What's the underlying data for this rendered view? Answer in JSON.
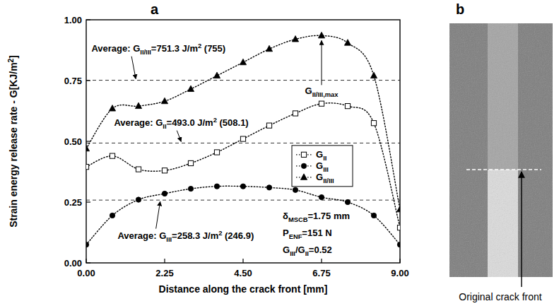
{
  "chart_data": {
    "type": "line",
    "panel_label": "a",
    "x_label": "Distance along the crack front [mm]",
    "y_label": [
      "Strain energy release rate - G[KJ/m",
      {
        "sup": "2"
      },
      "]"
    ],
    "x": [
      0,
      0.75,
      1.5,
      2.25,
      3.0,
      3.75,
      4.5,
      5.25,
      6.0,
      6.75,
      7.5,
      8.25,
      9.0
    ],
    "xlim": [
      0,
      9
    ],
    "xticks": [
      {
        "value": 0,
        "label": "0.00"
      },
      {
        "value": 2.25,
        "label": "2.25"
      },
      {
        "value": 4.5,
        "label": "4.50"
      },
      {
        "value": 6.75,
        "label": "6.75"
      },
      {
        "value": 9,
        "label": "9.00"
      }
    ],
    "ylim": [
      0,
      1
    ],
    "yticks": [
      {
        "value": 0,
        "label": "0.00"
      },
      {
        "value": 0.25,
        "label": "0.25"
      },
      {
        "value": 0.5,
        "label": "0.50"
      },
      {
        "value": 0.75,
        "label": "0.75"
      },
      {
        "value": 1,
        "label": "1.00"
      }
    ],
    "grid": false,
    "legend": "right",
    "series": [
      {
        "name": [
          "G",
          {
            "sub": "II"
          }
        ],
        "color": "#000000",
        "marker": "open-square",
        "line_style": "dotted",
        "values": [
          0.395,
          0.44,
          0.385,
          0.38,
          0.41,
          0.455,
          0.51,
          0.565,
          0.615,
          0.655,
          0.645,
          0.575,
          0.145
        ]
      },
      {
        "name": [
          "G",
          {
            "sub": "III"
          }
        ],
        "color": "#000000",
        "marker": "circle",
        "line_style": "dotted",
        "values": [
          0.075,
          0.195,
          0.26,
          0.285,
          0.305,
          0.315,
          0.315,
          0.31,
          0.3,
          0.27,
          0.25,
          0.195,
          0.075
        ]
      },
      {
        "name": [
          "G",
          {
            "sub": "II/III"
          }
        ],
        "color": "#000000",
        "marker": "triangle",
        "line_style": "dotted",
        "values": [
          0.47,
          0.635,
          0.645,
          0.665,
          0.715,
          0.77,
          0.825,
          0.88,
          0.92,
          0.935,
          0.905,
          0.77,
          0.22
        ]
      }
    ],
    "reference_lines": [
      {
        "value": 0.7513,
        "line_style": "dashed",
        "label": [
          "Average: G",
          {
            "sub": "II/III"
          },
          "=751.3 J/m",
          {
            "sup": "2"
          },
          " (755)"
        ]
      },
      {
        "value": 0.493,
        "line_style": "dashed",
        "label": [
          "Average: G",
          {
            "sub": "II"
          },
          "=493.0 J/m",
          {
            "sup": "2"
          },
          " (508.1)"
        ]
      },
      {
        "value": 0.2583,
        "line_style": "dashed",
        "label": [
          "Average: G",
          {
            "sub": "III"
          },
          "=258.3 J/m",
          {
            "sup": "2"
          },
          " (246.9)"
        ]
      }
    ],
    "annotations": [
      {
        "text": [
          "G",
          {
            "sub": "II/III,max"
          }
        ],
        "x": 6.75,
        "y": 0.935
      }
    ],
    "notes": [
      [
        "δ",
        {
          "sub": "MSCB"
        },
        "=1.75 mm"
      ],
      [
        "P",
        {
          "sub": "ENF"
        },
        "=151 N"
      ],
      [
        "G",
        {
          "sub": "III"
        },
        "/G",
        {
          "sub": "II"
        },
        "=0.52"
      ]
    ]
  },
  "image_panel": {
    "panel_label": "b",
    "caption": "Original crack front"
  }
}
